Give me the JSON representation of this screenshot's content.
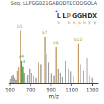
{
  "chart_data": {
    "type": "bar",
    "title": "Seq: LLPGGB21GABODTECODGOLA",
    "xlabel": "m/z",
    "x": [
      505,
      516,
      530,
      543,
      558,
      572,
      583,
      600,
      613,
      625,
      640,
      655,
      672,
      693,
      710,
      730,
      752,
      778,
      800,
      840,
      858,
      876,
      900,
      928,
      950,
      968,
      988,
      1010,
      1040,
      1068,
      1090,
      1115,
      1165,
      1188,
      1215,
      1248,
      1275,
      1300
    ],
    "values": [
      8,
      13,
      16,
      10,
      6,
      24,
      30,
      100,
      42,
      32,
      20,
      12,
      16,
      28,
      20,
      14,
      10,
      40,
      35,
      88,
      55,
      40,
      18,
      14,
      68,
      28,
      20,
      12,
      42,
      28,
      22,
      14,
      75,
      35,
      24,
      48,
      14,
      10
    ],
    "colors": [
      "#aaaaaa",
      "#aaaaaa",
      "#aaaaaa",
      "#aaaaaa",
      "#aaaaaa",
      "#c8a878",
      "#c8a878",
      "#c8a878",
      "#55aa55",
      "#55aa55",
      "#aaaaaa",
      "#aaaaaa",
      "#aaaaaa",
      "#aaaaaa",
      "#aaaaaa",
      "#aaaaaa",
      "#aaaaaa",
      "#c8a878",
      "#aaaaaa",
      "#c8a878",
      "#aaaaaa",
      "#aaaaaa",
      "#aaaaaa",
      "#aaaaaa",
      "#c8a878",
      "#aaaaaa",
      "#aaaaaa",
      "#aaaaaa",
      "#aaaaaa",
      "#aaaaaa",
      "#aaaaaa",
      "#aaaaaa",
      "#c8a878",
      "#aaaaaa",
      "#aaaaaa",
      "#7a5030",
      "#aaaaaa",
      "#aaaaaa"
    ],
    "labels": [
      null,
      null,
      null,
      null,
      null,
      null,
      null,
      "b5",
      "y4",
      "y3",
      null,
      null,
      null,
      null,
      null,
      null,
      null,
      null,
      null,
      "b7",
      null,
      null,
      null,
      null,
      "b8",
      null,
      null,
      null,
      null,
      null,
      null,
      null,
      "b10",
      null,
      null,
      null,
      null,
      null
    ],
    "label_colors": [
      null,
      null,
      null,
      null,
      null,
      null,
      null,
      "#cc9944",
      "#44aa55",
      "#44aa55",
      null,
      null,
      null,
      null,
      null,
      null,
      null,
      null,
      null,
      "#cc9944",
      null,
      null,
      null,
      null,
      "#cc9944",
      null,
      null,
      null,
      null,
      null,
      null,
      null,
      "#cc9944",
      null,
      null,
      null,
      null,
      null
    ],
    "xlim": [
      490,
      1360
    ],
    "xticks": [
      500,
      700,
      900,
      1100,
      1300
    ],
    "ylim": [
      0,
      108
    ],
    "tick_labels": "x",
    "grid": false,
    "annotations": [
      {
        "text": "+",
        "color": "#333399"
      }
    ],
    "sequence": [
      {
        "text": "L",
        "color": "#333399",
        "subscript": "b",
        "subscript_color": "#cc9944"
      },
      {
        "text": "L",
        "color": "#333333"
      },
      {
        "text": "P",
        "color": "#cc8833",
        "subscript": "b",
        "subscript_color": "#cc9944"
      },
      {
        "text": "G",
        "color": "#333333",
        "subscript": "b",
        "subscript_color": "#cc9944"
      },
      {
        "text": "G",
        "color": "#333333",
        "subscript": "b",
        "subscript_color": "#cc9944"
      },
      {
        "text": "H",
        "color": "#333333",
        "subscript": "b",
        "subscript_color": "#cc9944"
      },
      {
        "text": "D",
        "color": "#333333",
        "subscript": "y",
        "subscript_color": "#44aa55"
      },
      {
        "text": "X",
        "color": "#333333",
        "subscript": "y",
        "subscript_color": "#44aa55"
      }
    ]
  }
}
